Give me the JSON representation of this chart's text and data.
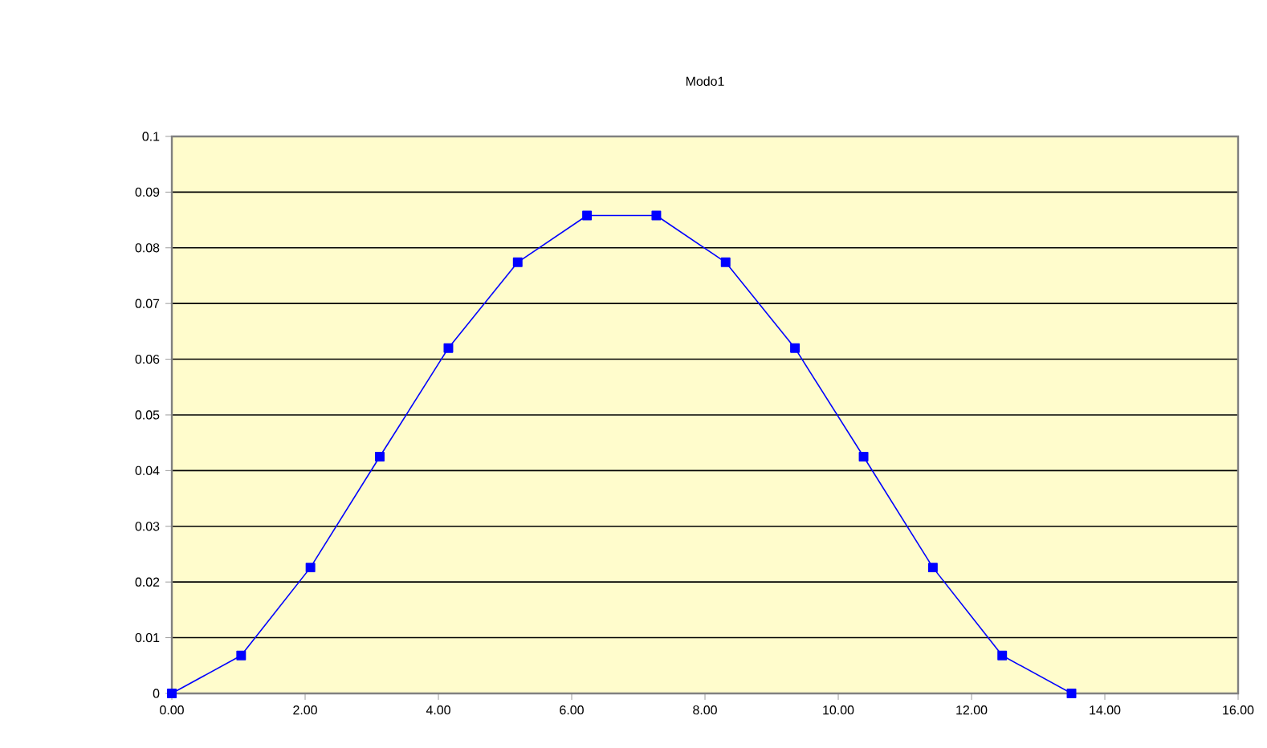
{
  "chart_data": {
    "type": "line",
    "title": "Modo1",
    "x": [
      0,
      1.04,
      2.08,
      3.12,
      4.15,
      5.19,
      6.23,
      7.27,
      8.31,
      9.35,
      10.38,
      11.42,
      12.46,
      13.5
    ],
    "series": [
      {
        "color": "#0000ff",
        "values": [
          0,
          0.0068,
          0.0226,
          0.0425,
          0.062,
          0.0774,
          0.0858,
          0.0858,
          0.0774,
          0.062,
          0.0425,
          0.0226,
          0.0068,
          0
        ]
      }
    ],
    "xlim": [
      0,
      16
    ],
    "xticks": [
      {
        "value": 0,
        "label": "0.00"
      },
      {
        "value": 2,
        "label": "2.00"
      },
      {
        "value": 4,
        "label": "4.00"
      },
      {
        "value": 6,
        "label": "6.00"
      },
      {
        "value": 8,
        "label": "8.00"
      },
      {
        "value": 10,
        "label": "10.00"
      },
      {
        "value": 12,
        "label": "12.00"
      },
      {
        "value": 14,
        "label": "14.00"
      },
      {
        "value": 16,
        "label": "16.00"
      }
    ],
    "ylim": [
      0,
      0.1
    ],
    "yticks": [
      0,
      0.01,
      0.02,
      0.03,
      0.04,
      0.05,
      0.06,
      0.07,
      0.08,
      0.09,
      0.1
    ],
    "grid": "y",
    "marker": "square",
    "line_style": "solid"
  }
}
